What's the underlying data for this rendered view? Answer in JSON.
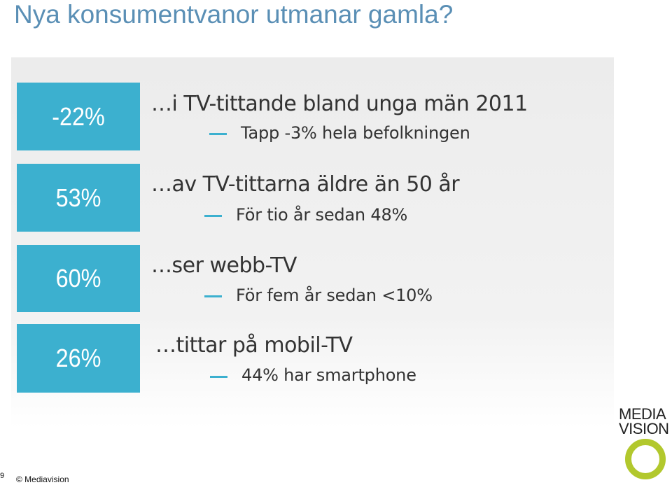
{
  "slide": {
    "title": "Nya konsumentvanor utmanar gamla?",
    "page_number": "9",
    "copyright": "© Mediavision"
  },
  "stats": [
    {
      "value": "-22%",
      "heading": "…i TV-tittande bland unga män 2011",
      "detail": "Tapp -3% hela befolkningen"
    },
    {
      "value": "53%",
      "heading": "…av TV-tittarna äldre än 50 år",
      "detail": "För tio år sedan 48%"
    },
    {
      "value": "60%",
      "heading": "…ser webb-TV",
      "detail": "För fem år sedan <10%"
    },
    {
      "value": "26%",
      "heading": "…tittar på mobil-TV",
      "detail": "44% har smartphone"
    }
  ],
  "logo": {
    "line1": "MEDIA",
    "line2": "VISION",
    "accent_color": "#b2c82d"
  },
  "colors": {
    "title": "#5a8fb5",
    "box": "#3cb0cf",
    "text": "#333333"
  }
}
